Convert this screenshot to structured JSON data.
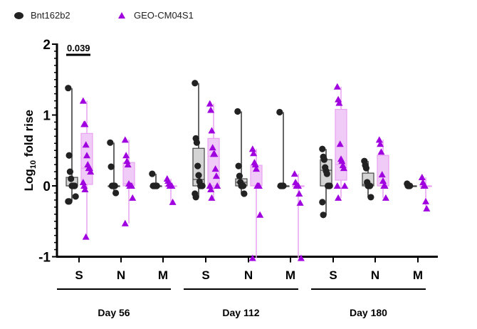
{
  "chart_data": {
    "type": "box",
    "title": "",
    "ylabel_base": "Log",
    "ylabel_sub": "10",
    "ylabel_rest": " fold rise",
    "ylim": [
      -1,
      2
    ],
    "yticks": [
      "2",
      "1",
      "0",
      "-1"
    ],
    "grid": false,
    "legend_position": "top-left",
    "series_meta": [
      {
        "name": "Bnt162b2",
        "color": "#222222",
        "box_fill": "#d4d4d4",
        "marker": "circle"
      },
      {
        "name": "GEO-CM04S1",
        "color": "#a000e0",
        "box_fill": "#f0cbf8",
        "marker": "triangle"
      }
    ],
    "groups": [
      {
        "label": "Day 56",
        "categories": [
          "S",
          "N",
          "M"
        ]
      },
      {
        "label": "Day 112",
        "categories": [
          "S",
          "N",
          "M"
        ]
      },
      {
        "label": "Day 180",
        "categories": [
          "S",
          "N",
          "M"
        ]
      }
    ],
    "annotation": {
      "text": "0.039",
      "group": "Day 56",
      "category": "S"
    },
    "data": [
      {
        "group": "Day 56",
        "category": "S",
        "series": "Bnt162b2",
        "box": [
          -0.22,
          0,
          0,
          0.12,
          1.38
        ],
        "points": [
          1.38,
          0.43,
          0.2,
          0.1,
          0,
          0,
          0,
          0,
          -0.15,
          -0.22,
          -0.22
        ]
      },
      {
        "group": "Day 56",
        "category": "S",
        "series": "GEO-CM04S1",
        "box": [
          -0.72,
          0.02,
          0.25,
          0.74,
          1.2
        ],
        "points": [
          1.2,
          0.87,
          0.87,
          0.58,
          0.43,
          0.3,
          0.25,
          0.25,
          0.2,
          0.05,
          0,
          -0.05,
          -0.72
        ]
      },
      {
        "group": "Day 56",
        "category": "N",
        "series": "Bnt162b2",
        "box": [
          -0.1,
          0,
          0,
          0,
          0.61
        ],
        "points": [
          0.61,
          0.27,
          0,
          0,
          0,
          0,
          -0.1
        ]
      },
      {
        "group": "Day 56",
        "category": "N",
        "series": "GEO-CM04S1",
        "box": [
          -0.53,
          0,
          0.03,
          0.33,
          0.65
        ],
        "points": [
          0.65,
          0.43,
          0.35,
          0.3,
          0.03,
          0,
          0,
          0,
          -0.17,
          -0.53
        ]
      },
      {
        "group": "Day 56",
        "category": "M",
        "series": "Bnt162b2",
        "box": [
          0,
          0,
          0,
          0,
          0.17
        ],
        "points": [
          0.17,
          0,
          0,
          0,
          0,
          0
        ]
      },
      {
        "group": "Day 56",
        "category": "M",
        "series": "GEO-CM04S1",
        "box": [
          -0.23,
          0,
          0,
          0,
          0.1
        ],
        "points": [
          0.1,
          0.07,
          0.03,
          0,
          0,
          0,
          -0.23
        ]
      },
      {
        "group": "Day 112",
        "category": "S",
        "series": "Bnt162b2",
        "box": [
          -0.16,
          0,
          0.09,
          0.53,
          1.45
        ],
        "points": [
          1.45,
          0.67,
          0.61,
          0.28,
          0.15,
          0.06,
          0,
          0,
          0,
          -0.11,
          -0.16
        ]
      },
      {
        "group": "Day 112",
        "category": "S",
        "series": "GEO-CM04S1",
        "box": [
          -0.17,
          0,
          0.42,
          0.67,
          1.16
        ],
        "points": [
          1.16,
          1.07,
          0.78,
          0.54,
          0.45,
          0.45,
          0.24,
          0.14,
          0,
          0,
          -0.05,
          -0.17
        ]
      },
      {
        "group": "Day 112",
        "category": "N",
        "series": "Bnt162b2",
        "box": [
          -0.11,
          0,
          0.05,
          0.1,
          1.05
        ],
        "points": [
          1.05,
          0.28,
          0.14,
          0.05,
          0,
          0,
          0,
          -0.11
        ]
      },
      {
        "group": "Day 112",
        "category": "N",
        "series": "GEO-CM04S1",
        "box": [
          -1.02,
          0,
          0,
          0.29,
          0.52
        ],
        "points": [
          0.52,
          0.46,
          0.33,
          0.3,
          0.24,
          0,
          0,
          0,
          -0.41,
          -1.02
        ]
      },
      {
        "group": "Day 112",
        "category": "M",
        "series": "Bnt162b2",
        "box": [
          0,
          0,
          0,
          0,
          1.04
        ],
        "points": [
          1.04,
          0,
          0,
          0,
          0
        ]
      },
      {
        "group": "Day 112",
        "category": "M",
        "series": "GEO-CM04S1",
        "box": [
          -1.02,
          0,
          0,
          0,
          0.17
        ],
        "points": [
          0.17,
          0.05,
          0,
          0,
          0,
          -0.11,
          -0.24,
          -1.02
        ]
      },
      {
        "group": "Day 180",
        "category": "S",
        "series": "Bnt162b2",
        "box": [
          -0.41,
          0,
          0.22,
          0.37,
          0.52
        ],
        "points": [
          0.52,
          0.41,
          0.37,
          0.26,
          0.21,
          0.17,
          0,
          0,
          0,
          -0.23,
          -0.41
        ]
      },
      {
        "group": "Day 180",
        "category": "S",
        "series": "GEO-CM04S1",
        "box": [
          -0.17,
          0.08,
          0.3,
          1.08,
          1.4
        ],
        "points": [
          1.4,
          1.22,
          1.17,
          0.59,
          0.38,
          0.35,
          0.29,
          0.25,
          0,
          0,
          -0.17
        ]
      },
      {
        "group": "Day 180",
        "category": "N",
        "series": "Bnt162b2",
        "box": [
          -0.16,
          0,
          0.02,
          0.18,
          0.35
        ],
        "points": [
          0.35,
          0.29,
          0.25,
          0.05,
          0,
          0,
          0,
          -0.16
        ]
      },
      {
        "group": "Day 180",
        "category": "N",
        "series": "GEO-CM04S1",
        "box": [
          -0.17,
          0,
          0,
          0.43,
          0.65
        ],
        "points": [
          0.65,
          0.59,
          0.48,
          0.16,
          0.07,
          0,
          0,
          -0.17
        ]
      },
      {
        "group": "Day 180",
        "category": "M",
        "series": "Bnt162b2",
        "box": [
          0,
          0,
          0,
          0,
          0.03
        ],
        "points": [
          0.03,
          0,
          0,
          0
        ]
      },
      {
        "group": "Day 180",
        "category": "M",
        "series": "GEO-CM04S1",
        "box": [
          -0.32,
          0,
          0,
          0,
          0.12
        ],
        "points": [
          0.12,
          0.05,
          0,
          0,
          -0.22,
          -0.32
        ]
      }
    ]
  }
}
